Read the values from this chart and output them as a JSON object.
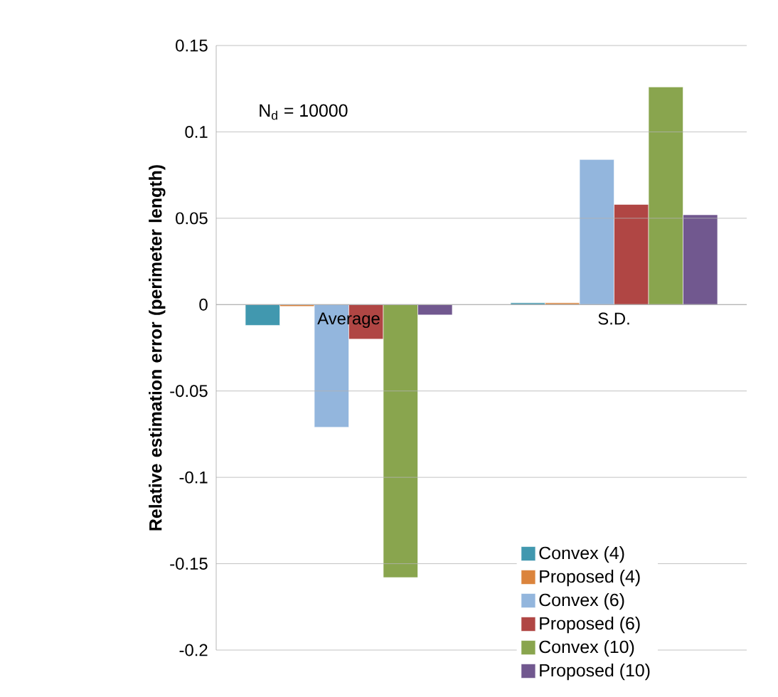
{
  "chart_data": {
    "type": "bar",
    "ylabel": "Relative estimation error (perimeter length)",
    "annotations": [
      "N$_{d}$ = 10000"
    ],
    "categories": [
      "Average",
      "S.D."
    ],
    "series": [
      {
        "name": "Convex (4)",
        "color": "#4198af",
        "values": [
          -0.012,
          0.001
        ]
      },
      {
        "name": "Proposed (4)",
        "color": "#db843d",
        "values": [
          -0.001,
          0.001
        ]
      },
      {
        "name": "Convex (6)",
        "color": "#93b6dd",
        "values": [
          -0.071,
          0.084
        ]
      },
      {
        "name": "Proposed (6)",
        "color": "#b04644",
        "values": [
          -0.02,
          0.058
        ]
      },
      {
        "name": "Convex (10)",
        "color": "#89a54e",
        "values": [
          -0.158,
          0.126
        ]
      },
      {
        "name": "Proposed (10)",
        "color": "#71588f",
        "values": [
          -0.006,
          0.052
        ]
      }
    ],
    "ylim": [
      -0.2,
      0.15
    ],
    "yticks": [
      0.15,
      0.1,
      0.05,
      0,
      -0.05,
      -0.1,
      -0.15,
      -0.2
    ],
    "grid": "y",
    "legend": "bottom right"
  }
}
